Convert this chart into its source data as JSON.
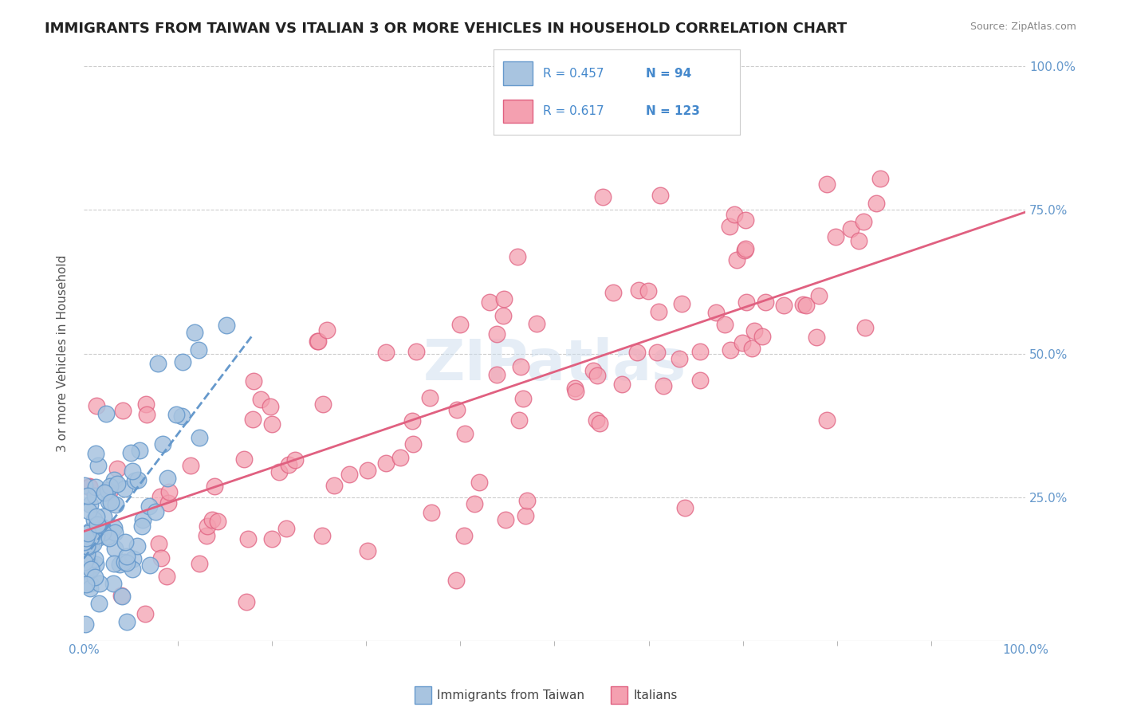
{
  "title": "IMMIGRANTS FROM TAIWAN VS ITALIAN 3 OR MORE VEHICLES IN HOUSEHOLD CORRELATION CHART",
  "source": "Source: ZipAtlas.com",
  "xlabel": "",
  "ylabel": "3 or more Vehicles in Household",
  "xlim": [
    0,
    100
  ],
  "ylim": [
    0,
    100
  ],
  "xtick_labels": [
    "0.0%",
    "100.0%"
  ],
  "ytick_labels_right": [
    "25.0%",
    "50.0%",
    "75.0%",
    "100.0%"
  ],
  "legend_labels": [
    "Immigrants from Taiwan",
    "Italians"
  ],
  "taiwan_R": 0.457,
  "taiwan_N": 94,
  "italian_R": 0.617,
  "italian_N": 123,
  "taiwan_color": "#a8c4e0",
  "taiwan_edge_color": "#6699cc",
  "italian_color": "#f4a0b0",
  "italian_edge_color": "#e06080",
  "taiwan_line_color": "#6699cc",
  "italian_line_color": "#e06080",
  "background_color": "#ffffff",
  "grid_color": "#cccccc",
  "watermark": "ZIPatlas",
  "taiwan_seed": 42,
  "italian_seed": 99,
  "title_color": "#222222",
  "axis_label_color": "#555555",
  "tick_label_color": "#6699cc",
  "legend_r_color": "#4488cc",
  "legend_n_color": "#4488cc"
}
